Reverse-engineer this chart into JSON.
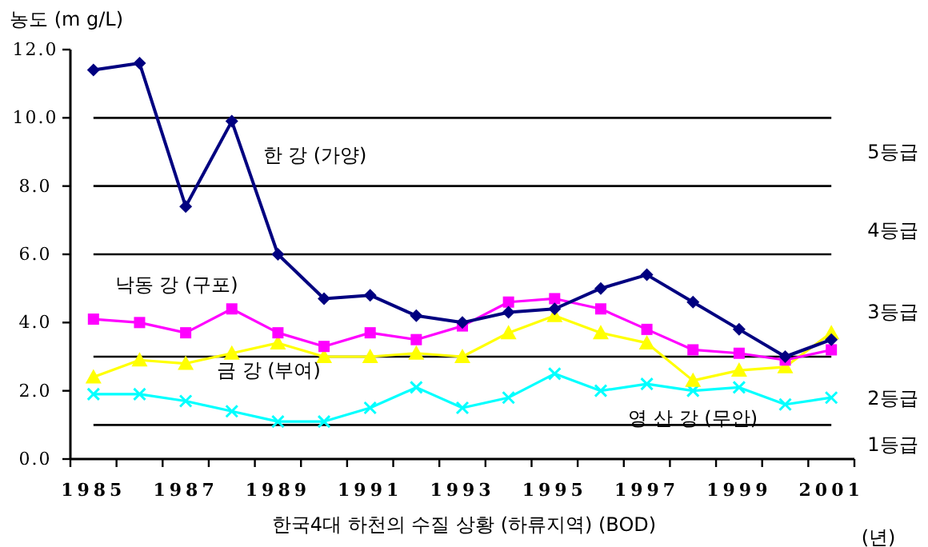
{
  "chart_data": {
    "type": "line",
    "xlabel": "한국4대 하천의 수질 상황 (하류지역)    (BOD)",
    "ylabel": "농도 (m g/L)",
    "categories": [
      "1985",
      null,
      "1987",
      null,
      "1989",
      null,
      "1991",
      null,
      "1993",
      null,
      "1995",
      null,
      "1997",
      null,
      "1999",
      null,
      "2001"
    ],
    "series": [
      {
        "name": "한 강 (가양)",
        "color": "#000080",
        "marker": "diamond",
        "values": [
          11.4,
          11.6,
          7.4,
          9.9,
          6.0,
          4.7,
          4.8,
          4.2,
          4.0,
          4.3,
          4.4,
          5.0,
          5.4,
          4.6,
          3.8,
          3.0,
          3.5
        ]
      },
      {
        "name": "낙동 강 (구포)",
        "color": "#ff00ff",
        "marker": "square",
        "values": [
          4.1,
          4.0,
          3.7,
          4.4,
          3.7,
          3.3,
          3.7,
          3.5,
          3.9,
          4.6,
          4.7,
          4.4,
          3.8,
          3.2,
          3.1,
          2.9,
          3.2
        ]
      },
      {
        "name": "금 강 (부여)",
        "color": "#ffff00",
        "marker": "triangle",
        "values": [
          2.4,
          2.9,
          2.8,
          3.1,
          3.4,
          3.0,
          3.0,
          3.1,
          3.0,
          3.7,
          4.2,
          3.7,
          3.4,
          2.3,
          2.6,
          2.7,
          3.7
        ]
      },
      {
        "name": "영 산 강 (무안)",
        "color": "#00ffff",
        "marker": "cross",
        "values": [
          1.9,
          1.9,
          1.7,
          1.4,
          1.1,
          1.1,
          1.5,
          2.1,
          1.5,
          1.8,
          2.5,
          2.0,
          2.2,
          2.0,
          2.1,
          1.6,
          1.8
        ]
      }
    ],
    "ylim": [
      0,
      12
    ],
    "yticks": [
      {
        "value": 0,
        "label": "0.0"
      },
      {
        "value": 2,
        "label": "2.0"
      },
      {
        "value": 4,
        "label": "4.0"
      },
      {
        "value": 6,
        "label": "6.0"
      },
      {
        "value": 8,
        "label": "8.0"
      },
      {
        "value": 10,
        "label": "10.0"
      },
      {
        "value": 12,
        "label": "12.0"
      }
    ],
    "ref_lines": [
      {
        "axis": "y",
        "value": 1,
        "color": "#000000"
      },
      {
        "axis": "y",
        "value": 3,
        "color": "#000000"
      },
      {
        "axis": "y",
        "value": 6,
        "color": "#000000"
      },
      {
        "axis": "y",
        "value": 8,
        "color": "#000000"
      },
      {
        "axis": "y",
        "value": 10,
        "color": "#000000"
      }
    ],
    "annotations": [
      "5등급",
      "4등급",
      "3등급",
      "2등급",
      "1등급",
      "(년)"
    ],
    "grid": false,
    "legend": false,
    "line_style": "solid"
  }
}
